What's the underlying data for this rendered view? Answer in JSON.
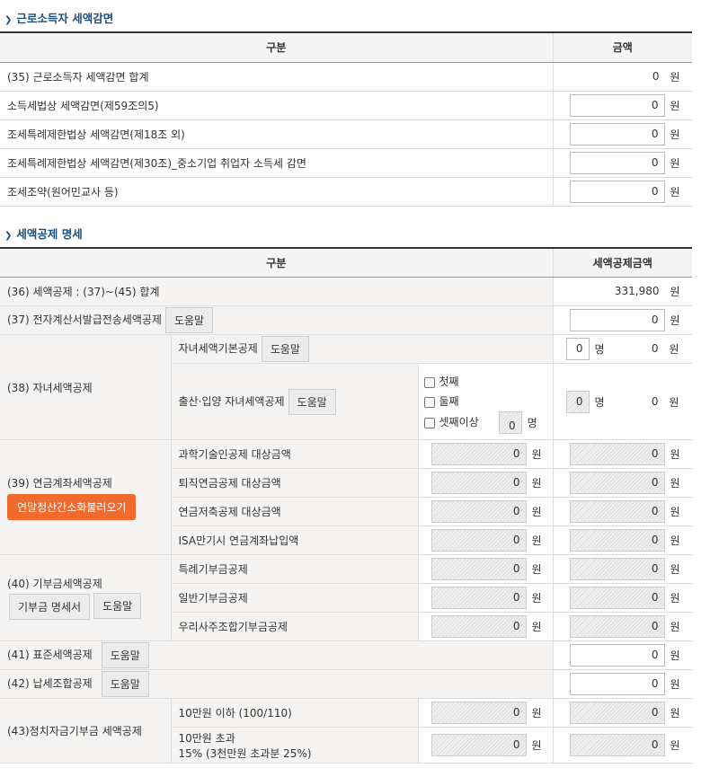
{
  "section1": {
    "title": "근로소득자 세액감면",
    "col_category": "구분",
    "col_amount": "금액",
    "rows": [
      {
        "label": "(35) 근로소득자 세액감면 합계",
        "value": "0",
        "unit": "원"
      },
      {
        "label": "소득세법상 세액감면(제59조의5)",
        "value": "0",
        "unit": "원"
      },
      {
        "label": "조세특례제한법상 세액감면(제18조 외)",
        "value": "0",
        "unit": "원"
      },
      {
        "label": "조세특례제한법상 세액감면(제30조)_중소기업 취업자 소득세 감면",
        "value": "0",
        "unit": "원"
      },
      {
        "label": "조세조약(원어민교사 등)",
        "value": "0",
        "unit": "원"
      }
    ]
  },
  "section2": {
    "title": "세액공제 명세",
    "col_category": "구분",
    "col_amount": "세액공제금액",
    "r36": {
      "label": "(36) 세액공제 : (37)~(45) 합계",
      "value": "331,980",
      "unit": "원"
    },
    "r37": {
      "label": "(37) 전자계산서발급전송세액공제",
      "help": "도움말",
      "value": "0",
      "unit": "원"
    },
    "r38": {
      "label": "(38) 자녀세액공제",
      "basic": {
        "label": "자녀세액기본공제",
        "help": "도움말",
        "count": "0",
        "count_unit": "명",
        "value": "0",
        "unit": "원"
      },
      "birth": {
        "label": "출산·입양 자녀세액공제",
        "help": "도움말",
        "options": [
          "첫째",
          "둘째",
          "셋째이상"
        ],
        "third_count": "0",
        "count": "0",
        "count_unit": "명",
        "value": "0",
        "unit": "원"
      }
    },
    "r39": {
      "label": "(39) 연금계좌세액공제",
      "button": "연말정산간소화불러오기",
      "items": [
        {
          "label": "과학기술인공제 대상금액",
          "target": "0",
          "value": "0"
        },
        {
          "label": "퇴직연금공제 대상금액",
          "target": "0",
          "value": "0"
        },
        {
          "label": "연금저축공제 대상금액",
          "target": "0",
          "value": "0"
        },
        {
          "label": "ISA만기시 연금계좌납입액",
          "target": "0",
          "value": "0"
        }
      ]
    },
    "r40": {
      "label": "(40) 기부금세액공제",
      "button1": "기부금 명세서",
      "button2": "도움말",
      "items": [
        {
          "label": "특례기부금공제",
          "target": "0",
          "value": "0"
        },
        {
          "label": "일반기부금공제",
          "target": "0",
          "value": "0"
        },
        {
          "label": "우리사주조합기부금공제",
          "target": "0",
          "value": "0"
        }
      ]
    },
    "r41": {
      "label": "(41) 표준세액공제",
      "help": "도움말",
      "value": "0",
      "unit": "원"
    },
    "r42": {
      "label": "(42) 납세조합공제",
      "help": "도움말",
      "value": "0",
      "unit": "원"
    },
    "r43": {
      "label": "(43)정치자금기부금 세액공제",
      "items": [
        {
          "label": "10만원 이하 (100/110)",
          "label2": "",
          "target": "0",
          "value": "0"
        },
        {
          "label": "10만원 초과",
          "label2": "15% (3천만원 초과분 25%)",
          "target": "0",
          "value": "0"
        }
      ]
    },
    "unit": "원"
  }
}
